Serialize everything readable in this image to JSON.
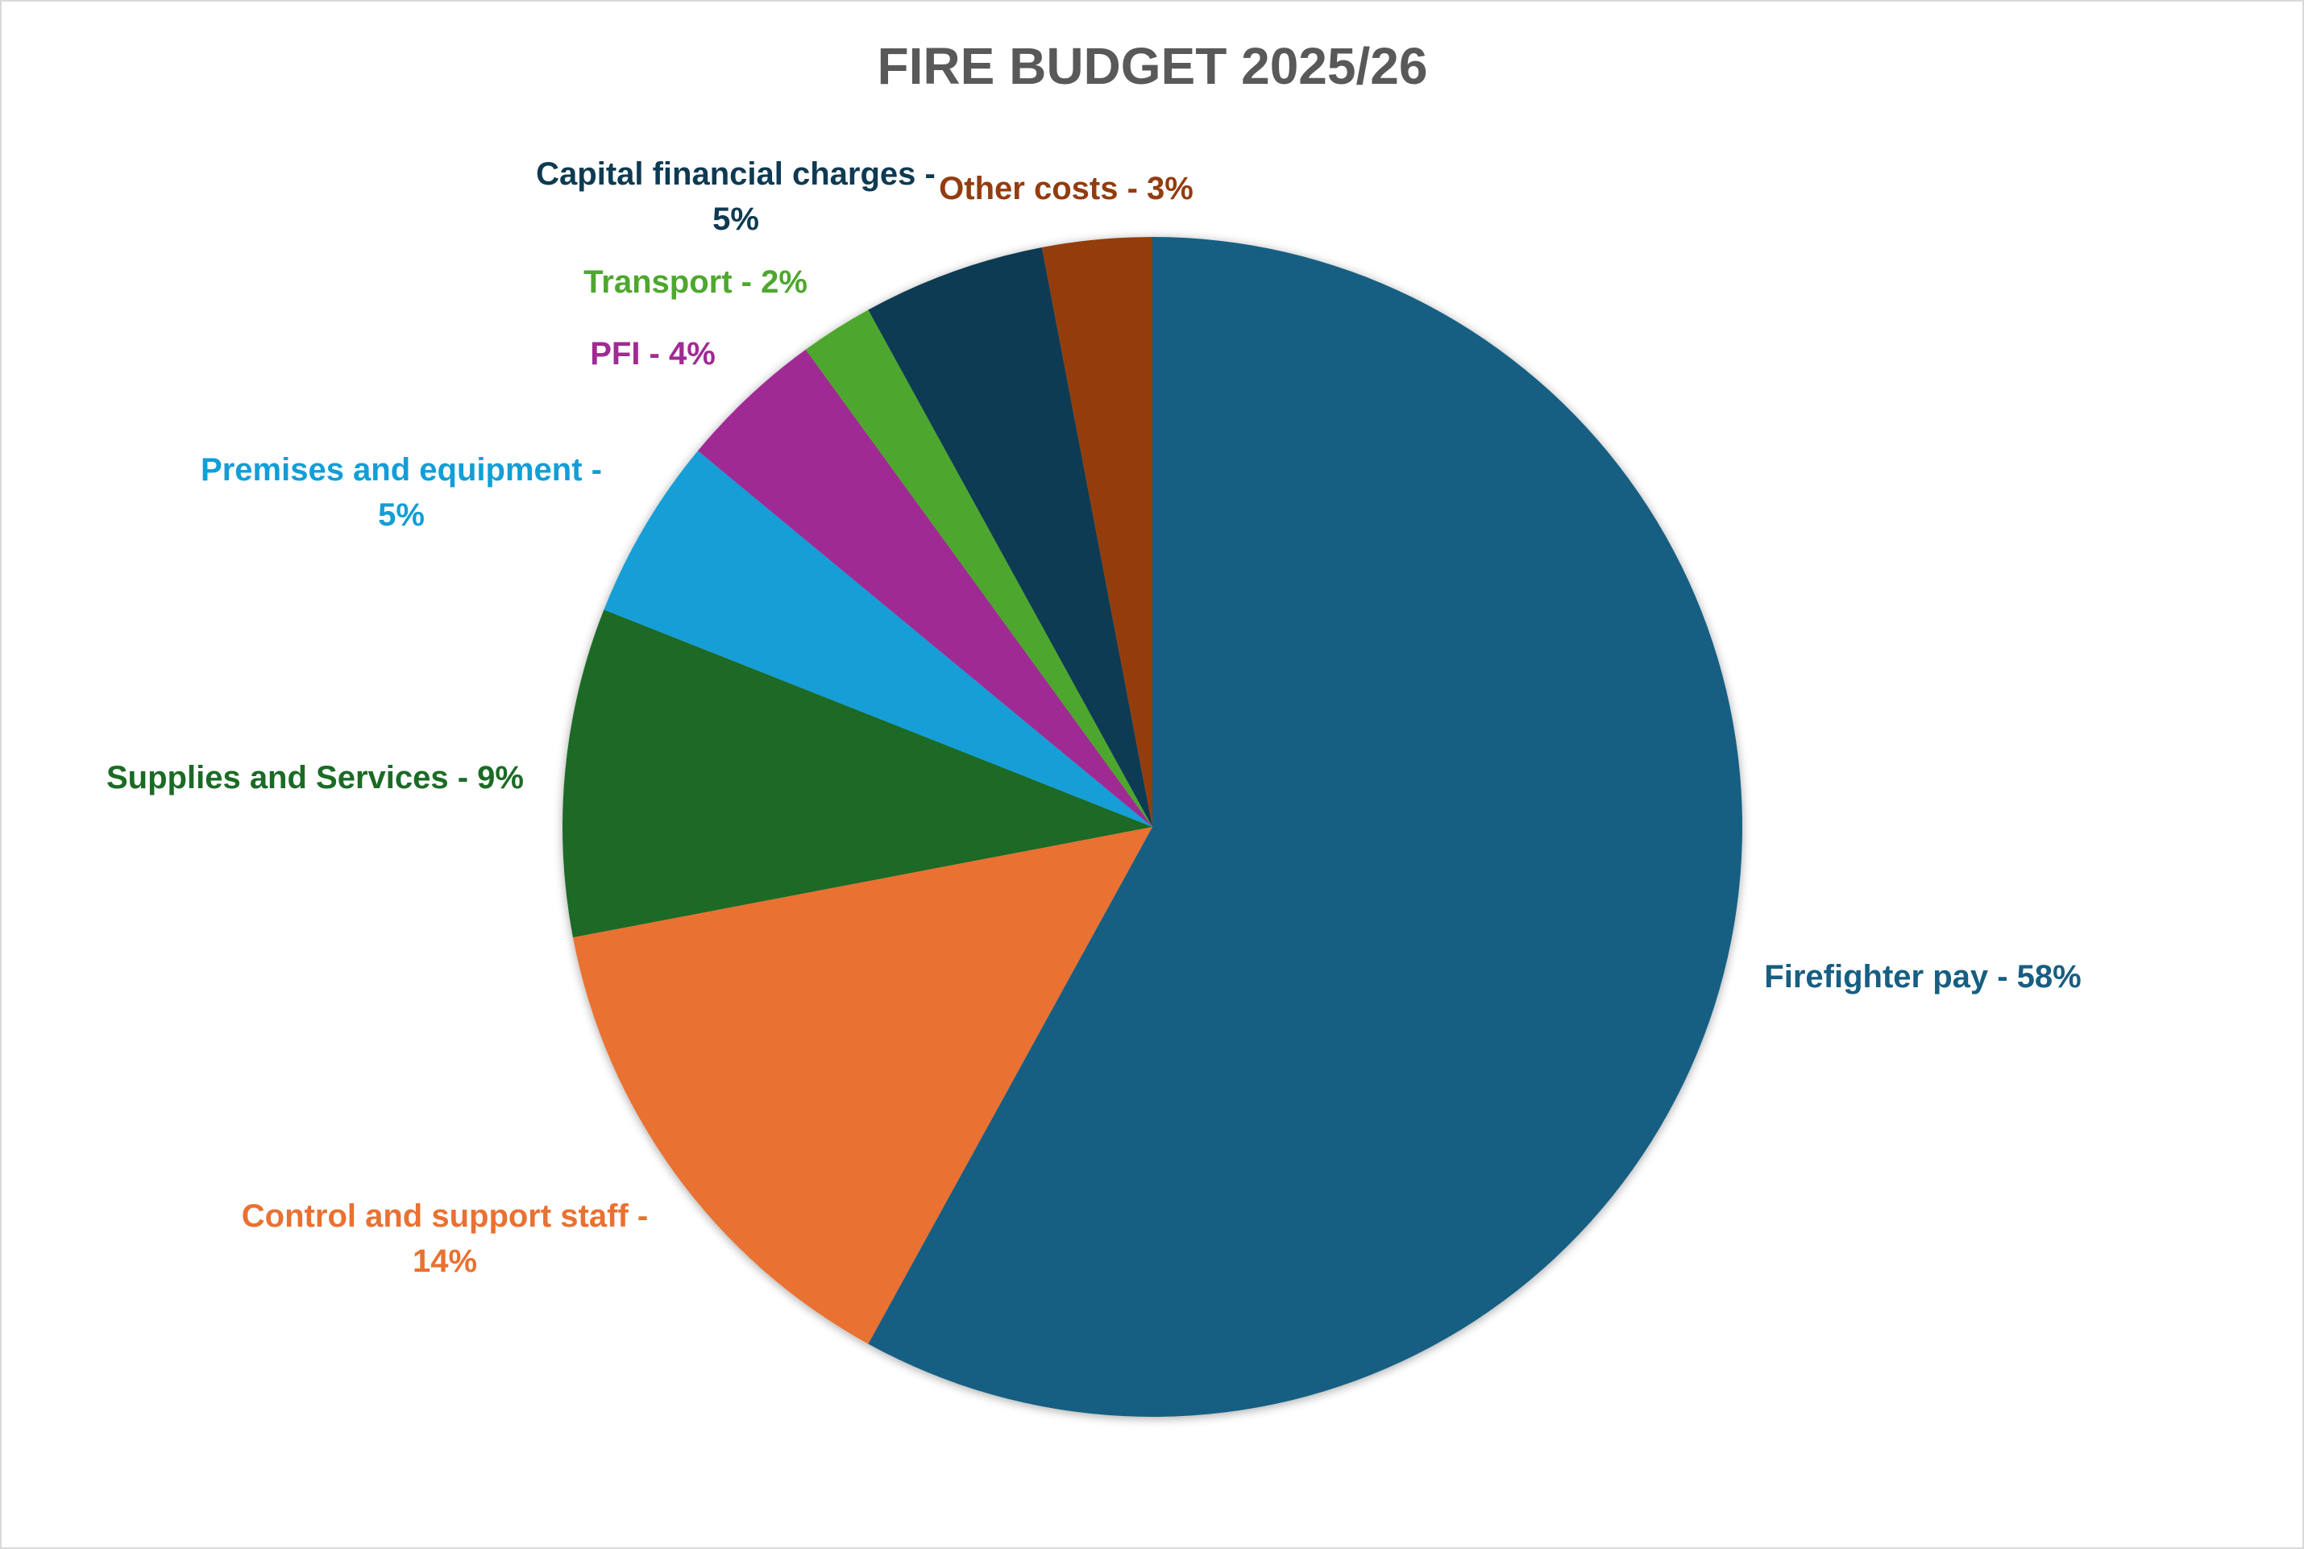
{
  "chart_data": {
    "type": "pie",
    "title": "FIRE BUDGET 2025/26",
    "start_angle_deg": 0,
    "direction": "clockwise",
    "slices": [
      {
        "label_text": [
          "Firefighter pay - 58%"
        ],
        "value": 58,
        "color": "#175e82"
      },
      {
        "label_text": [
          "Control and support staff -",
          "14%"
        ],
        "value": 14,
        "color": "#e97132"
      },
      {
        "label_text": [
          "Supplies and Services - 9%"
        ],
        "value": 9,
        "color": "#1b6b25"
      },
      {
        "label_text": [
          "Premises and equipment -",
          "5%"
        ],
        "value": 5,
        "color": "#129ed7"
      },
      {
        "label_text": [
          "PFI - 4%"
        ],
        "value": 4,
        "color": "#a02b93"
      },
      {
        "label_text": [
          "Transport - 2%"
        ],
        "value": 2,
        "color": "#4ea72e"
      },
      {
        "label_text": [
          "Capital financial charges -",
          "5%"
        ],
        "value": 5,
        "color": "#0e3a52"
      },
      {
        "label_text": [
          "Other costs - 3%"
        ],
        "value": 3,
        "color": "#933c0f"
      }
    ]
  }
}
